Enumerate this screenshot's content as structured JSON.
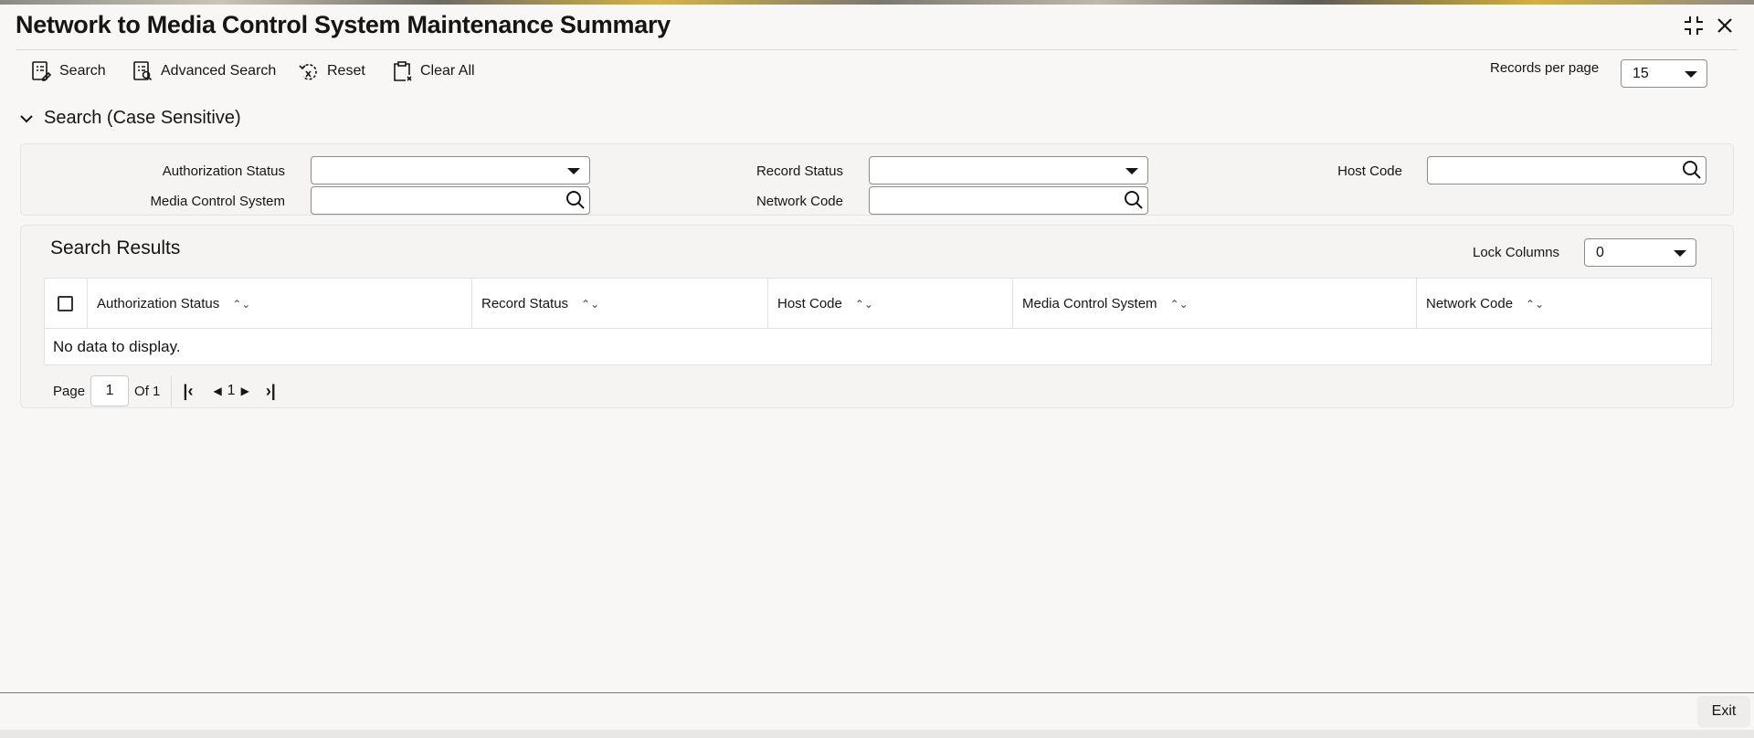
{
  "title": "Network to Media Control System Maintenance Summary",
  "toolbar": {
    "search": "Search",
    "advanced_search": "Advanced Search",
    "reset": "Reset",
    "clear_all": "Clear All"
  },
  "records_per_page": {
    "label": "Records per page",
    "value": "15"
  },
  "search_section": {
    "title": "Search (Case Sensitive)",
    "fields": {
      "authorization_status": {
        "label": "Authorization Status",
        "value": ""
      },
      "record_status": {
        "label": "Record Status",
        "value": ""
      },
      "host_code": {
        "label": "Host Code",
        "value": ""
      },
      "media_control_system": {
        "label": "Media Control System",
        "value": ""
      },
      "network_code": {
        "label": "Network Code",
        "value": ""
      }
    }
  },
  "results": {
    "title": "Search Results",
    "lock_columns": {
      "label": "Lock Columns",
      "value": "0"
    },
    "columns": [
      "Authorization Status",
      "Record Status",
      "Host Code",
      "Media Control System",
      "Network Code"
    ],
    "empty_message": "No data to display.",
    "pagination": {
      "page_label": "Page",
      "page": "1",
      "of_label": "Of 1",
      "current": "1"
    }
  },
  "footer": {
    "exit": "Exit"
  }
}
